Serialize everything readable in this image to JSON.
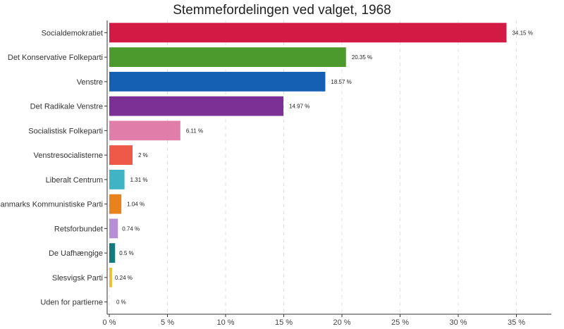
{
  "chart_data": {
    "type": "bar",
    "orientation": "horizontal",
    "title": "Stemmefordelingen ved valget, 1968",
    "xlabel": "",
    "ylabel": "",
    "xlim": [
      0,
      38
    ],
    "x_ticks": [
      0,
      5,
      10,
      15,
      20,
      25,
      30,
      35
    ],
    "x_tick_labels": [
      "0 %",
      "5 %",
      "10 %",
      "15 %",
      "20 %",
      "25 %",
      "30 %",
      "35 %"
    ],
    "grid": "vertical dashed",
    "legend": "none",
    "categories": [
      "Socialdemokratiet",
      "Det Konservative Folkeparti",
      "Venstre",
      "Det Radikale Venstre",
      "Socialistisk Folkeparti",
      "Venstresocialisterne",
      "Liberalt Centrum",
      "Danmarks Kommunistiske Parti",
      "Retsforbundet",
      "De Uafhængige",
      "Slesvigsk Parti",
      "Uden for partierne"
    ],
    "values": [
      34.15,
      20.35,
      18.57,
      14.97,
      6.11,
      2,
      1.31,
      1.04,
      0.74,
      0.5,
      0.24,
      0
    ],
    "value_labels": [
      "34.15 %",
      "20.35 %",
      "18.57 %",
      "14.97 %",
      "6.11 %",
      "2 %",
      "1.31 %",
      "1.04 %",
      "0.74 %",
      "0.5 %",
      "0.24 %",
      "0 %"
    ],
    "colors": [
      "#d31a45",
      "#4c9a2e",
      "#1660b4",
      "#7c3095",
      "#e07da8",
      "#ee5a47",
      "#40b4c4",
      "#e8821c",
      "#b58fd4",
      "#157a7a",
      "#eac139",
      "#999999"
    ]
  }
}
